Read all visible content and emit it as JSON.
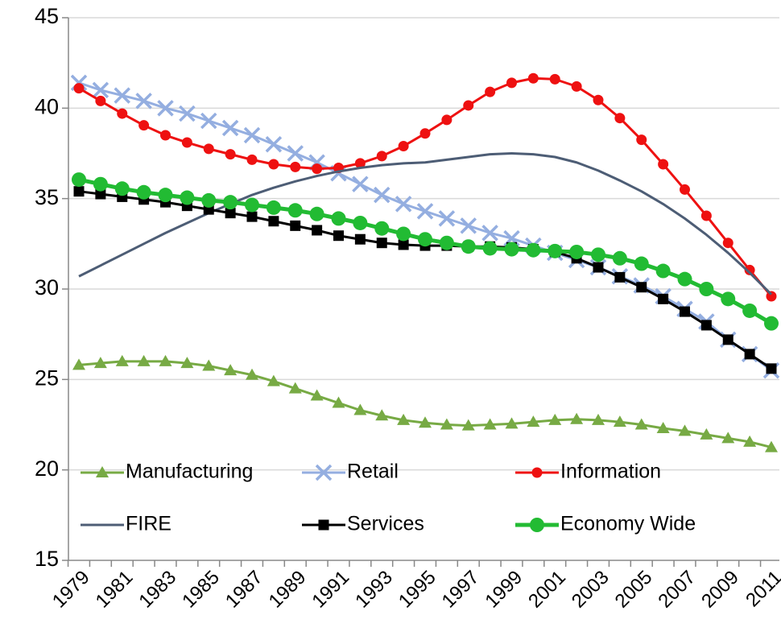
{
  "chart_data": {
    "type": "line",
    "categories": [
      "1979",
      null,
      "1981",
      null,
      "1983",
      null,
      "1985",
      null,
      "1987",
      null,
      "1989",
      null,
      "1991",
      null,
      "1993",
      null,
      "1995",
      null,
      "1997",
      null,
      "1999",
      null,
      "2001",
      null,
      "2003",
      null,
      "2005",
      null,
      "2007",
      null,
      "2009",
      null,
      "2011"
    ],
    "series": [
      {
        "name": "Manufacturing",
        "color": "#77aa44",
        "marker": "triangle",
        "values": [
          25.8,
          25.9,
          26.0,
          26.0,
          26.0,
          25.9,
          25.75,
          25.5,
          25.25,
          24.9,
          24.5,
          24.1,
          23.7,
          23.3,
          23.0,
          22.75,
          22.6,
          22.5,
          22.45,
          22.5,
          22.55,
          22.65,
          22.75,
          22.8,
          22.75,
          22.65,
          22.5,
          22.3,
          22.15,
          21.95,
          21.75,
          21.55,
          21.25
        ]
      },
      {
        "name": "Retail",
        "color": "#94aee0",
        "marker": "x",
        "values": [
          41.4,
          41.0,
          40.7,
          40.4,
          40.0,
          39.7,
          39.3,
          38.9,
          38.5,
          38.0,
          37.5,
          37.0,
          36.4,
          35.8,
          35.2,
          34.7,
          34.3,
          33.9,
          33.5,
          33.1,
          32.8,
          32.4,
          32.0,
          31.6,
          31.2,
          30.7,
          30.2,
          29.6,
          28.9,
          28.2,
          27.2,
          26.4,
          25.5
        ]
      },
      {
        "name": "Information",
        "color": "#ee1111",
        "marker": "circle",
        "values": [
          41.1,
          40.4,
          39.7,
          39.05,
          38.5,
          38.1,
          37.75,
          37.45,
          37.15,
          36.9,
          36.75,
          36.65,
          36.7,
          36.95,
          37.35,
          37.9,
          38.6,
          39.35,
          40.15,
          40.9,
          41.4,
          41.65,
          41.6,
          41.2,
          40.45,
          39.45,
          38.25,
          36.9,
          35.5,
          34.05,
          32.55,
          31.05,
          29.6
        ]
      },
      {
        "name": "FIRE",
        "color": "#4d5d75",
        "marker": "none",
        "values": [
          30.7,
          31.3,
          31.9,
          32.5,
          33.1,
          33.65,
          34.2,
          34.7,
          35.2,
          35.6,
          35.95,
          36.25,
          36.5,
          36.7,
          36.85,
          36.95,
          37.0,
          37.15,
          37.3,
          37.45,
          37.5,
          37.45,
          37.3,
          37.0,
          36.55,
          36.0,
          35.4,
          34.7,
          33.9,
          33.0,
          32.0,
          30.9,
          29.7
        ]
      },
      {
        "name": "Services",
        "color": "#000000",
        "marker": "square",
        "values": [
          35.4,
          35.25,
          35.1,
          34.95,
          34.8,
          34.6,
          34.4,
          34.2,
          34.0,
          33.75,
          33.5,
          33.25,
          32.95,
          32.75,
          32.55,
          32.45,
          32.4,
          32.4,
          32.35,
          32.35,
          32.3,
          32.2,
          32.05,
          31.7,
          31.2,
          30.65,
          30.1,
          29.45,
          28.75,
          28.0,
          27.2,
          26.4,
          25.6
        ]
      },
      {
        "name": "Economy Wide",
        "color": "#22bb33",
        "marker": "circle",
        "values": [
          36.05,
          35.8,
          35.55,
          35.35,
          35.2,
          35.05,
          34.9,
          34.8,
          34.65,
          34.5,
          34.35,
          34.15,
          33.9,
          33.65,
          33.35,
          33.05,
          32.75,
          32.55,
          32.35,
          32.25,
          32.2,
          32.15,
          32.1,
          32.05,
          31.9,
          31.7,
          31.4,
          31.0,
          30.55,
          30.0,
          29.45,
          28.8,
          28.1
        ]
      }
    ],
    "ylim": [
      15,
      45
    ],
    "yticks": [
      15,
      20,
      25,
      30,
      35,
      40,
      45
    ],
    "grid": true
  }
}
